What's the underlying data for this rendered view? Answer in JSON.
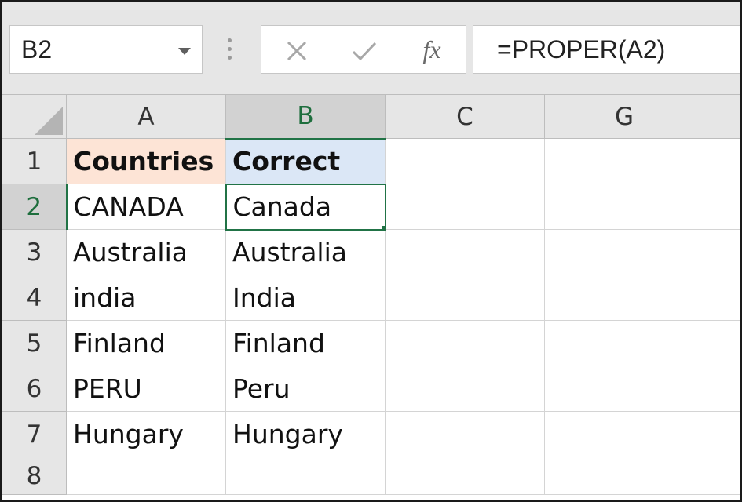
{
  "name_box": {
    "value": "B2"
  },
  "formula_bar": {
    "cancel_icon": "x-icon",
    "enter_icon": "check-icon",
    "fx_label": "fx",
    "formula": "=PROPER(A2)"
  },
  "columns": [
    "A",
    "B",
    "C",
    "G"
  ],
  "rows": [
    {
      "num": "1",
      "a": "Countries",
      "b": "Correct"
    },
    {
      "num": "2",
      "a": "CANADA",
      "b": "Canada"
    },
    {
      "num": "3",
      "a": "Australia",
      "b": "Australia"
    },
    {
      "num": "4",
      "a": "india",
      "b": "India"
    },
    {
      "num": "5",
      "a": "Finland",
      "b": "Finland"
    },
    {
      "num": "6",
      "a": "PERU",
      "b": "Peru"
    },
    {
      "num": "7",
      "a": "Hungary",
      "b": "Hungary"
    },
    {
      "num": "8",
      "a": "",
      "b": ""
    }
  ],
  "colors": {
    "accent": "#217346",
    "header_a_fill": "#fde4d6",
    "header_b_fill": "#dbe7f6"
  }
}
